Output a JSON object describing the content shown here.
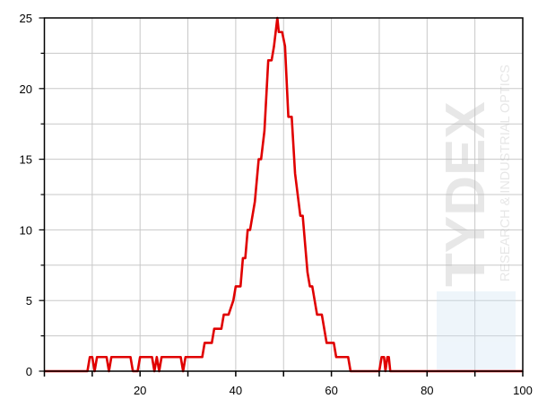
{
  "chart_data": {
    "type": "line",
    "title": "",
    "xlabel": "",
    "ylabel": "",
    "xlim": [
      0,
      100
    ],
    "ylim": [
      0,
      25
    ],
    "x_ticks": [
      "20",
      "40",
      "60",
      "80",
      "100"
    ],
    "y_ticks": [
      "0",
      "5",
      "10",
      "15",
      "20",
      "25"
    ],
    "grid": true,
    "series": [
      {
        "color": "#e00000",
        "points": [
          [
            0,
            0
          ],
          [
            9,
            0
          ],
          [
            9.5,
            1
          ],
          [
            10,
            1
          ],
          [
            10.5,
            0
          ],
          [
            11,
            1
          ],
          [
            13,
            1
          ],
          [
            13.5,
            0
          ],
          [
            14,
            1
          ],
          [
            18,
            1
          ],
          [
            18.5,
            0
          ],
          [
            19.5,
            0
          ],
          [
            20,
            1
          ],
          [
            22.5,
            1
          ],
          [
            23,
            0
          ],
          [
            23.5,
            1
          ],
          [
            24,
            0
          ],
          [
            24.5,
            1
          ],
          [
            28.5,
            1
          ],
          [
            29,
            0
          ],
          [
            29.5,
            1
          ],
          [
            33,
            1
          ],
          [
            33.5,
            2
          ],
          [
            35,
            2
          ],
          [
            35.5,
            3
          ],
          [
            37,
            3
          ],
          [
            37.5,
            4
          ],
          [
            38.5,
            4
          ],
          [
            39.5,
            5
          ],
          [
            40,
            6
          ],
          [
            41,
            6
          ],
          [
            41.5,
            8
          ],
          [
            42,
            8
          ],
          [
            42.5,
            10
          ],
          [
            43,
            10
          ],
          [
            44,
            12
          ],
          [
            44.8,
            15
          ],
          [
            45.3,
            15
          ],
          [
            46,
            17
          ],
          [
            46.8,
            22
          ],
          [
            47.5,
            22
          ],
          [
            48,
            23
          ],
          [
            48.7,
            25
          ],
          [
            49,
            24
          ],
          [
            49.7,
            24
          ],
          [
            50.3,
            23
          ],
          [
            51,
            18
          ],
          [
            51.7,
            18
          ],
          [
            52.4,
            14
          ],
          [
            53.5,
            11
          ],
          [
            54,
            11
          ],
          [
            55,
            7
          ],
          [
            55.5,
            6
          ],
          [
            56,
            6
          ],
          [
            57,
            4
          ],
          [
            58,
            4
          ],
          [
            59,
            2
          ],
          [
            60.5,
            2
          ],
          [
            61,
            1
          ],
          [
            63.5,
            1
          ],
          [
            64,
            0
          ],
          [
            70,
            0
          ],
          [
            70.5,
            1
          ],
          [
            71,
            1
          ],
          [
            71.3,
            0
          ],
          [
            71.7,
            1
          ],
          [
            72,
            1
          ],
          [
            72.3,
            0
          ],
          [
            100,
            0
          ]
        ]
      }
    ]
  },
  "watermark": {
    "brand": "TYDEX",
    "tagline": "RESEARCH & INDUSTRIAL OPTICS"
  }
}
